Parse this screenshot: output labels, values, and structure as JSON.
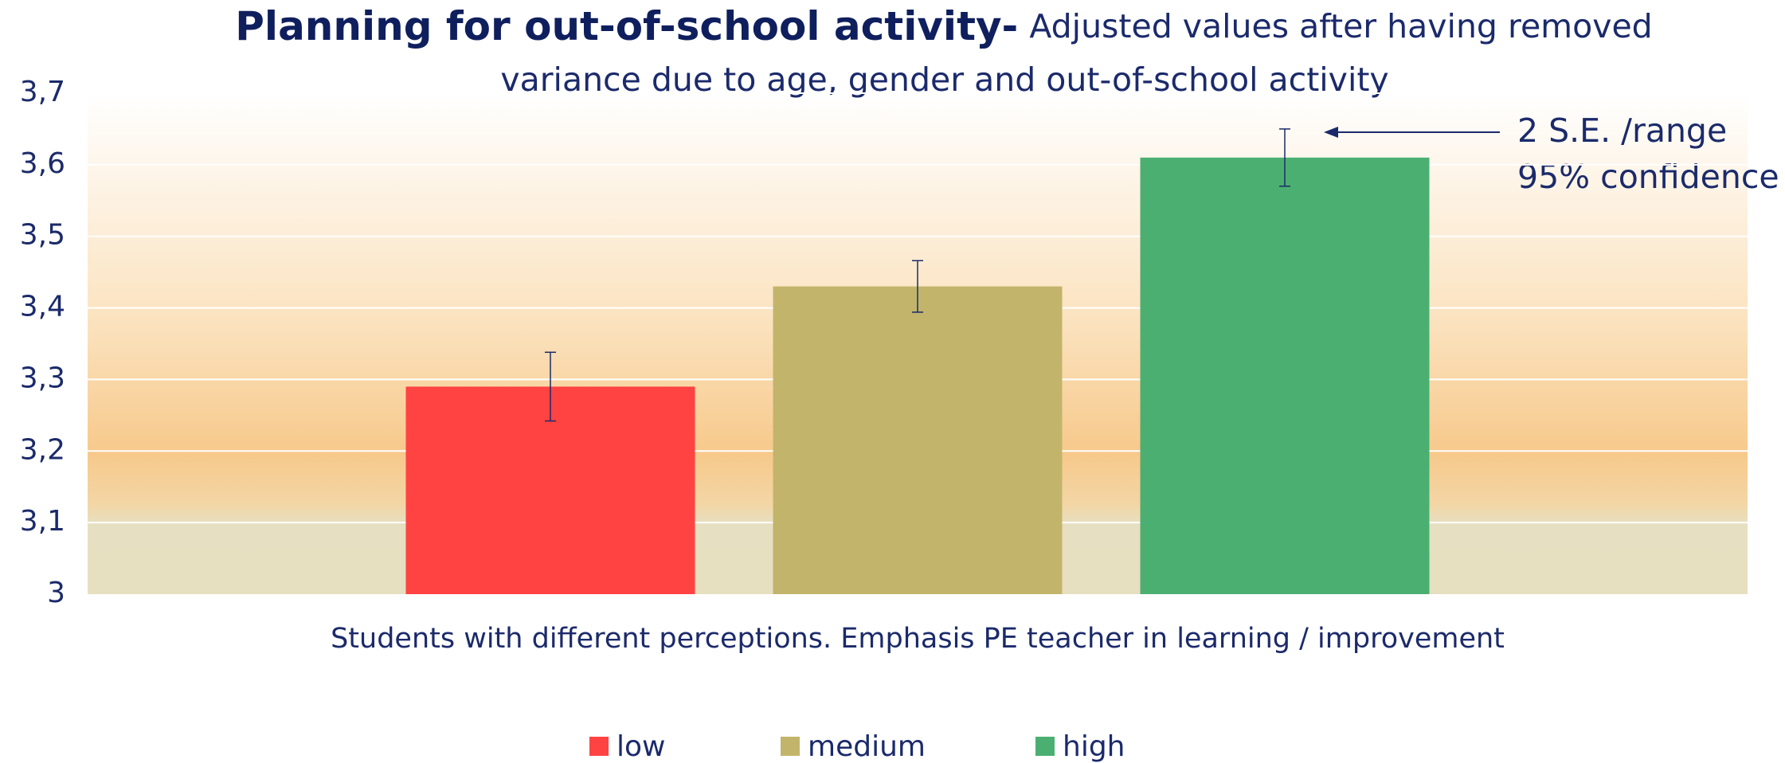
{
  "chart_data": {
    "type": "bar",
    "title": "Planning for out-of-school activity-",
    "subtitle": [
      "Adjusted values after having removed",
      "variance due to age, gender and out-of-school activity"
    ],
    "x_label": "Students with different perceptions. Emphasis PE teacher in learning / improvement",
    "categories": [
      null
    ],
    "series": [
      {
        "name": "low",
        "color": "#ff4343",
        "values": [
          3.29
        ],
        "errors": [
          0.048
        ]
      },
      {
        "name": "medium",
        "color": "#c2b56b",
        "values": [
          3.43
        ],
        "errors": [
          0.036
        ]
      },
      {
        "name": "high",
        "color": "#4caf72",
        "values": [
          3.61
        ],
        "errors": [
          0.04
        ]
      }
    ],
    "annotation": [
      "2 S.E. /range",
      "95% confidence"
    ],
    "ylim": [
      3,
      3.7
    ],
    "yticks": [
      3,
      {
        "value": 3.1,
        "label": "3,1"
      },
      {
        "value": 3.2,
        "label": "3,2"
      },
      {
        "value": 3.3,
        "label": "3,3"
      },
      {
        "value": 3.4,
        "label": "3,4"
      },
      {
        "value": 3.5,
        "label": "3,5"
      },
      {
        "value": 3.6,
        "label": "3,6"
      },
      {
        "value": 3.7,
        "label": "3,7"
      }
    ],
    "grid": true,
    "legend": "bottom"
  }
}
